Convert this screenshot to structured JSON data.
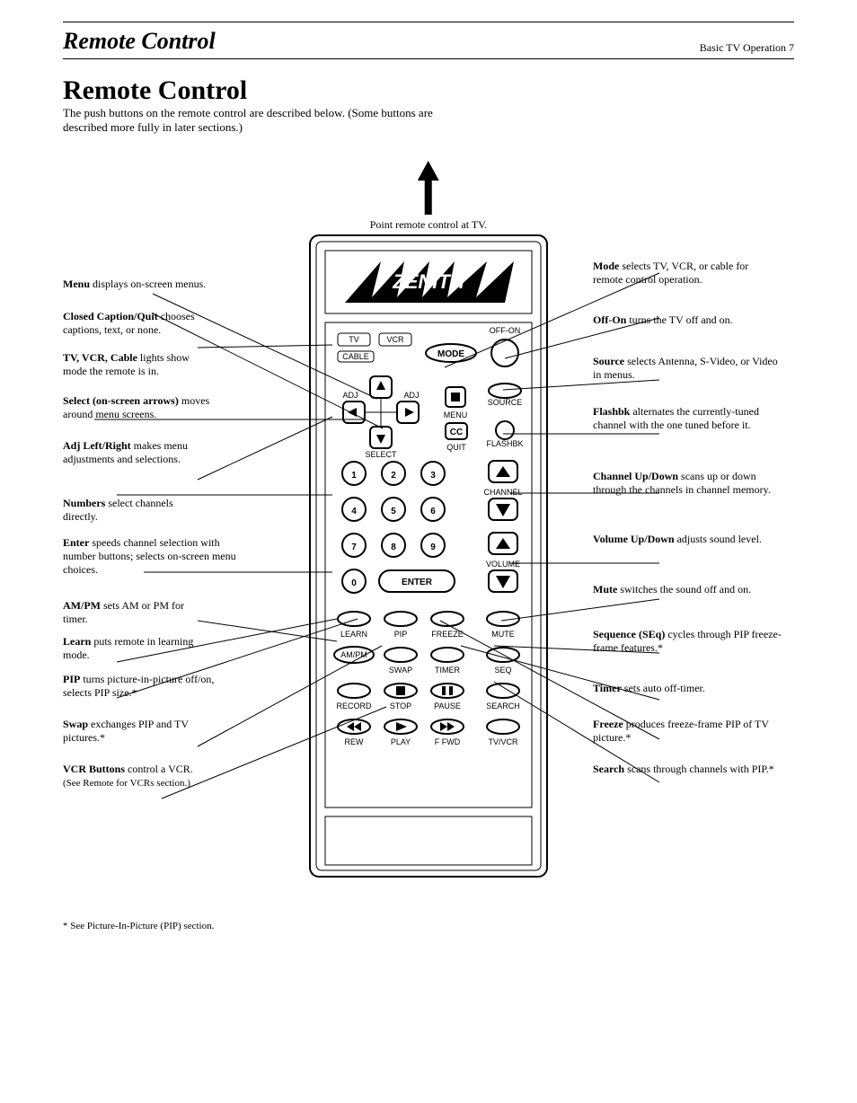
{
  "page": {
    "section_header_left": "Remote Control",
    "section_header_right": "Basic TV Operation     7",
    "title": "Remote Control",
    "subtitle": "The push buttons on the remote control are described below. (Some buttons are described more fully in later sections.)",
    "arrow_caption": "Point remote control at TV.",
    "footnote": "* See Picture-In-Picture (PIP) section."
  },
  "callouts": {
    "menu": {
      "bold": "Menu",
      "text": " displays on-screen menus."
    },
    "cc_quit": {
      "bold": "Closed Caption/Quit",
      "text": " chooses captions, text, or none."
    },
    "tv_vcr_cable": {
      "bold": "TV, VCR, Cable",
      "text": " lights show mode the remote is in."
    },
    "select": {
      "bold": "Select (on-screen arrows)",
      "text": " moves around menu screens."
    },
    "adj": {
      "bold": "Adj Left/Right",
      "text": " makes menu adjustments and selections."
    },
    "numbers": {
      "bold": "Numbers",
      "text": " select channels directly."
    },
    "enter": {
      "bold": "Enter",
      "text": " speeds channel selection with number buttons; selects on-screen menu choices."
    },
    "ampm": {
      "bold": "AM/PM",
      "text": " sets AM or PM for timer."
    },
    "learn": {
      "bold": "Learn",
      "text": " puts remote in learning mode."
    },
    "pip": {
      "bold": "PIP",
      "text": " turns picture-in-picture off/on, selects PIP size.*"
    },
    "swap": {
      "bold": "Swap",
      "text": " exchanges PIP and TV pictures.*"
    },
    "vcr_btns": {
      "bold": "VCR Buttons",
      "text": " control a VCR.",
      "sm": "(See Remote for VCRs section.)"
    },
    "mode": {
      "bold": "Mode",
      "text": " selects TV, VCR, or cable for remote control operation."
    },
    "offon": {
      "bold": "Off-On",
      "text": " turns the TV off and on."
    },
    "source": {
      "bold": "Source",
      "text": " selects Antenna, S-Video, or Video in menus."
    },
    "flashbk": {
      "bold": "Flashbk",
      "text": " alternates the currently-tuned channel with the one tuned before it."
    },
    "chan": {
      "bold": "Channel Up/Down",
      "text": " scans up or down through the channels in channel memory."
    },
    "vol": {
      "bold": "Volume Up/Down",
      "text": " adjusts sound level."
    },
    "mute": {
      "bold": "Mute",
      "text": " switches the sound off and on."
    },
    "seq": {
      "bold": "Sequence (SEq)",
      "text": " cycles through PIP freeze-frame features.*"
    },
    "timer": {
      "bold": "Timer",
      "text": " sets auto off-timer."
    },
    "freeze": {
      "bold": "Freeze",
      "text": " produces freeze-frame PIP of TV picture.*"
    },
    "search": {
      "bold": "Search",
      "text": " scans through channels with PIP.*"
    }
  },
  "remote": {
    "brand": "ZENITH",
    "mode_lights": [
      "TV",
      "VCR",
      "CABLE"
    ],
    "mode_btn": "MODE",
    "off_on": "OFF-ON",
    "source": "SOURCE",
    "flashbk": "FLASHBK",
    "adj": "ADJ",
    "select": "SELECT",
    "menu": "MENU",
    "cc": "CC",
    "quit": "QUIT",
    "channel": "CHANNEL",
    "volume": "VOLUME",
    "enter": "ENTER",
    "row_labels": [
      "LEARN",
      "PIP",
      "FREEZE",
      "MUTE",
      "AM/PM",
      "SWAP",
      "TIMER",
      "SEQ",
      "RECORD",
      "STOP",
      "PAUSE",
      "SEARCH",
      "REW",
      "PLAY",
      "F FWD",
      "TV/VCR"
    ]
  },
  "style": {
    "page_bg": "#ffffff",
    "fg": "#000000",
    "font_family": "Times New Roman",
    "label_font_size_pt": 9,
    "title_font_size_pt": 22,
    "subtitle_font_size_pt": 10
  }
}
